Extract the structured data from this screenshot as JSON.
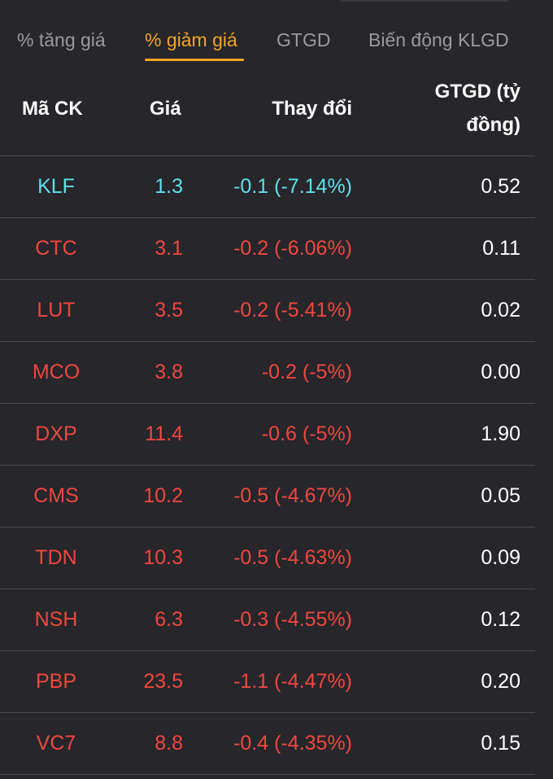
{
  "tabs": [
    {
      "label": "% tăng giá",
      "active": false
    },
    {
      "label": "% giảm giá",
      "active": true
    },
    {
      "label": "GTGD",
      "active": false
    },
    {
      "label": "Biến động KLGD",
      "active": false
    }
  ],
  "columns": {
    "code": "Mã CK",
    "price": "Giá",
    "change": "Thay đổi",
    "value_line1": "GTGD (tỷ",
    "value_line2": "đồng)"
  },
  "colors": {
    "background": "#26262b",
    "accent": "#f5a524",
    "down": "#f0473f",
    "floor": "#5fe0ea",
    "text": "#ffffff",
    "muted": "#9a9aa0"
  },
  "rows": [
    {
      "code": "KLF",
      "price": "1.3",
      "change": "-0.1 (-7.14%)",
      "value": "0.52",
      "status": "floor"
    },
    {
      "code": "CTC",
      "price": "3.1",
      "change": "-0.2 (-6.06%)",
      "value": "0.11",
      "status": "down"
    },
    {
      "code": "LUT",
      "price": "3.5",
      "change": "-0.2 (-5.41%)",
      "value": "0.02",
      "status": "down"
    },
    {
      "code": "MCO",
      "price": "3.8",
      "change": "-0.2 (-5%)",
      "value": "0.00",
      "status": "down"
    },
    {
      "code": "DXP",
      "price": "11.4",
      "change": "-0.6 (-5%)",
      "value": "1.90",
      "status": "down"
    },
    {
      "code": "CMS",
      "price": "10.2",
      "change": "-0.5 (-4.67%)",
      "value": "0.05",
      "status": "down"
    },
    {
      "code": "TDN",
      "price": "10.3",
      "change": "-0.5 (-4.63%)",
      "value": "0.09",
      "status": "down"
    },
    {
      "code": "NSH",
      "price": "6.3",
      "change": "-0.3 (-4.55%)",
      "value": "0.12",
      "status": "down"
    },
    {
      "code": "PBP",
      "price": "23.5",
      "change": "-1.1 (-4.47%)",
      "value": "0.20",
      "status": "down"
    },
    {
      "code": "VC7",
      "price": "8.8",
      "change": "-0.4 (-4.35%)",
      "value": "0.15",
      "status": "down"
    }
  ]
}
